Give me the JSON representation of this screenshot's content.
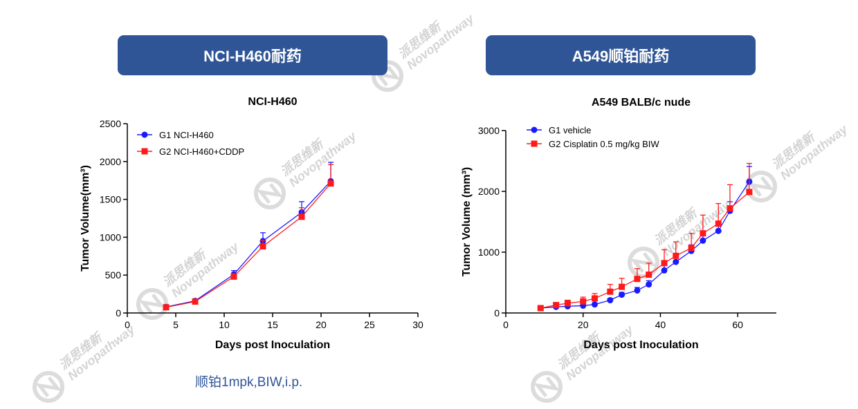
{
  "banners": {
    "left": "NCI-H460耐药",
    "right": "A549顺铂耐药"
  },
  "note": "顺铂1mpk,BIW,i.p.",
  "watermark": {
    "line1": "派思维新",
    "line2": "Novopathway"
  },
  "colors": {
    "banner": "#2f5597",
    "g1": "#1a1aff",
    "g2": "#ff1a1a",
    "note": "#2f5597"
  },
  "chart_data": [
    {
      "type": "line",
      "title": "NCI-H460",
      "xlabel": "Days post Inoculation",
      "ylabel": "Tumor Volume(mm³)",
      "xlim": [
        0,
        30
      ],
      "ylim": [
        0,
        2500
      ],
      "xticks": [
        0,
        5,
        10,
        15,
        20,
        25,
        30
      ],
      "yticks": [
        0,
        500,
        1000,
        1500,
        2000,
        2500
      ],
      "legend_position": "top-left",
      "series": [
        {
          "name": "G1 NCI-H460",
          "color": "#1a1aff",
          "marker": "circle",
          "x": [
            4,
            7,
            11,
            14,
            18,
            21
          ],
          "y": [
            80,
            160,
            510,
            950,
            1330,
            1740
          ],
          "err": [
            15,
            20,
            50,
            110,
            140,
            250
          ]
        },
        {
          "name": "G2 NCI-H460+CDDP",
          "color": "#ff1a1a",
          "marker": "square",
          "x": [
            4,
            7,
            11,
            14,
            18,
            21
          ],
          "y": [
            75,
            150,
            480,
            880,
            1270,
            1710
          ],
          "err": [
            10,
            20,
            40,
            80,
            120,
            250
          ]
        }
      ]
    },
    {
      "type": "line",
      "title": "A549 BALB/c nude",
      "xlabel": "Days post Inoculation",
      "ylabel": "Tumor Volume (mm³)",
      "xlim": [
        0,
        70
      ],
      "ylim": [
        0,
        3000
      ],
      "xticks": [
        0,
        20,
        40,
        60
      ],
      "yticks": [
        0,
        1000,
        2000,
        3000
      ],
      "legend_position": "top-left",
      "series": [
        {
          "name": "G1 vehicle",
          "color": "#1a1aff",
          "marker": "circle",
          "x": [
            9,
            13,
            16,
            20,
            23,
            27,
            30,
            34,
            37,
            41,
            44,
            48,
            51,
            55,
            58,
            63
          ],
          "y": [
            80,
            100,
            110,
            120,
            140,
            210,
            300,
            370,
            470,
            700,
            840,
            1020,
            1190,
            1350,
            1680,
            2160
          ],
          "err": [
            10,
            15,
            15,
            20,
            20,
            30,
            40,
            50,
            60,
            80,
            90,
            100,
            110,
            120,
            150,
            250
          ]
        },
        {
          "name": "G2 Cisplatin 0.5 mg/kg BIW",
          "color": "#ff1a1a",
          "marker": "square",
          "x": [
            9,
            13,
            16,
            20,
            23,
            27,
            30,
            34,
            37,
            41,
            44,
            48,
            51,
            55,
            58,
            63
          ],
          "y": [
            80,
            130,
            160,
            190,
            240,
            350,
            430,
            560,
            630,
            820,
            940,
            1070,
            1310,
            1470,
            1720,
            1990
          ],
          "err": [
            20,
            40,
            50,
            70,
            80,
            120,
            140,
            170,
            190,
            220,
            230,
            240,
            300,
            330,
            390,
            470
          ]
        }
      ]
    }
  ]
}
